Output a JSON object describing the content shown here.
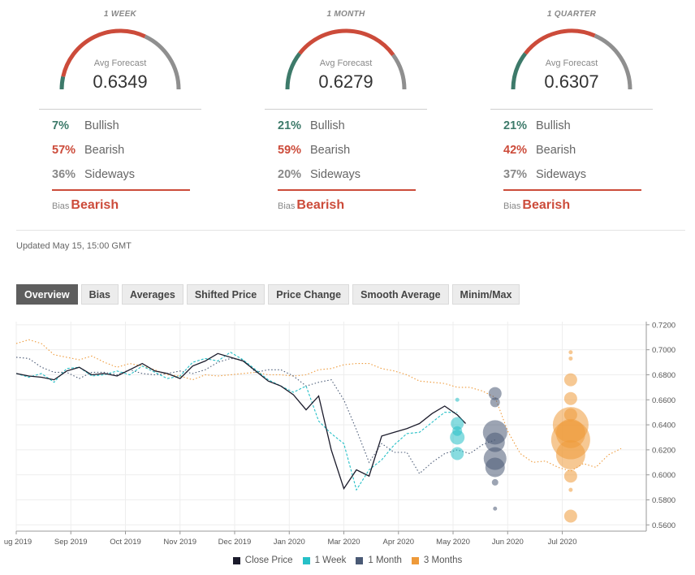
{
  "gauges": [
    {
      "period": "1 WEEK",
      "label": "Avg Forecast",
      "value": "0.6349",
      "bullish_pct": "7%",
      "bearish_pct": "57%",
      "sideways_pct": "36%",
      "bullish_label": "Bullish",
      "bearish_label": "Bearish",
      "sideways_label": "Sideways",
      "bias_key": "Bias",
      "bias_value": "Bearish",
      "split": [
        0.07,
        0.57,
        0.36
      ]
    },
    {
      "period": "1 MONTH",
      "label": "Avg Forecast",
      "value": "0.6279",
      "bullish_pct": "21%",
      "bearish_pct": "59%",
      "sideways_pct": "20%",
      "bullish_label": "Bullish",
      "bearish_label": "Bearish",
      "sideways_label": "Sideways",
      "bias_key": "Bias",
      "bias_value": "Bearish",
      "split": [
        0.21,
        0.59,
        0.2
      ]
    },
    {
      "period": "1 QUARTER",
      "label": "Avg Forecast",
      "value": "0.6307",
      "bullish_pct": "21%",
      "bearish_pct": "42%",
      "sideways_pct": "37%",
      "bullish_label": "Bullish",
      "bearish_label": "Bearish",
      "sideways_label": "Sideways",
      "bias_key": "Bias",
      "bias_value": "Bearish",
      "split": [
        0.21,
        0.42,
        0.37
      ]
    }
  ],
  "colors": {
    "bullish": "#3d7a6a",
    "bearish": "#cc4b3a",
    "sideways": "#8f8f8f",
    "close": "#1b1b2b",
    "week": "#26c0c7",
    "month": "#4a5a75",
    "quarter": "#ee9a3a"
  },
  "updated": "Updated May 15, 15:00 GMT",
  "tabs": [
    "Overview",
    "Bias",
    "Averages",
    "Shifted Price",
    "Price Change",
    "Smooth Average",
    "Minim/Max"
  ],
  "legend": {
    "close": "Close Price",
    "week": "1 Week",
    "month": "1 Month",
    "quarter": "3 Months"
  },
  "chart_data": {
    "type": "line",
    "x_labels": [
      "ug 2019",
      "Sep 2019",
      "Oct 2019",
      "Nov 2019",
      "Dec 2019",
      "Jan 2020",
      "Mar 2020",
      "Apr 2020",
      "May 2020",
      "Jun 2020",
      "Jul 2020"
    ],
    "y_ticks": [
      "0.7200",
      "0.7000",
      "0.6800",
      "0.6600",
      "0.6400",
      "0.6200",
      "0.6000",
      "0.5800",
      "0.5600"
    ],
    "ylim": [
      0.555,
      0.7225
    ],
    "series": [
      {
        "name": "Close Price",
        "style": "solid",
        "points": [
          [
            0,
            0.681
          ],
          [
            6,
            0.679
          ],
          [
            12,
            0.678
          ],
          [
            18,
            0.676
          ],
          [
            24,
            0.683
          ],
          [
            30,
            0.686
          ],
          [
            36,
            0.68
          ],
          [
            42,
            0.681
          ],
          [
            48,
            0.679
          ],
          [
            54,
            0.684
          ],
          [
            60,
            0.689
          ],
          [
            66,
            0.683
          ],
          [
            72,
            0.681
          ],
          [
            78,
            0.677
          ],
          [
            84,
            0.687
          ],
          [
            90,
            0.691
          ],
          [
            96,
            0.697
          ],
          [
            102,
            0.694
          ],
          [
            108,
            0.691
          ],
          [
            114,
            0.683
          ],
          [
            120,
            0.675
          ],
          [
            126,
            0.671
          ],
          [
            132,
            0.664
          ],
          [
            138,
            0.652
          ],
          [
            144,
            0.663
          ],
          [
            150,
            0.62
          ],
          [
            156,
            0.589
          ],
          [
            162,
            0.604
          ],
          [
            168,
            0.599
          ],
          [
            174,
            0.631
          ],
          [
            180,
            0.634
          ],
          [
            186,
            0.637
          ],
          [
            192,
            0.641
          ],
          [
            198,
            0.649
          ],
          [
            204,
            0.655
          ],
          [
            210,
            0.648
          ],
          [
            214,
            0.641
          ]
        ]
      },
      {
        "name": "1 Week",
        "style": "dash",
        "points": [
          [
            0,
            0.681
          ],
          [
            6,
            0.678
          ],
          [
            12,
            0.681
          ],
          [
            18,
            0.674
          ],
          [
            24,
            0.685
          ],
          [
            30,
            0.686
          ],
          [
            36,
            0.679
          ],
          [
            42,
            0.68
          ],
          [
            48,
            0.683
          ],
          [
            54,
            0.68
          ],
          [
            60,
            0.687
          ],
          [
            66,
            0.682
          ],
          [
            72,
            0.677
          ],
          [
            78,
            0.679
          ],
          [
            84,
            0.69
          ],
          [
            90,
            0.693
          ],
          [
            96,
            0.691
          ],
          [
            102,
            0.698
          ],
          [
            108,
            0.692
          ],
          [
            114,
            0.684
          ],
          [
            120,
            0.676
          ],
          [
            126,
            0.671
          ],
          [
            132,
            0.666
          ],
          [
            138,
            0.671
          ],
          [
            144,
            0.643
          ],
          [
            150,
            0.633
          ],
          [
            156,
            0.625
          ],
          [
            162,
            0.588
          ],
          [
            168,
            0.604
          ],
          [
            174,
            0.612
          ],
          [
            180,
            0.624
          ],
          [
            186,
            0.633
          ],
          [
            192,
            0.634
          ],
          [
            198,
            0.642
          ],
          [
            204,
            0.65
          ],
          [
            210,
            0.65
          ]
        ]
      },
      {
        "name": "1 Month",
        "style": "dot",
        "points": [
          [
            0,
            0.694
          ],
          [
            6,
            0.693
          ],
          [
            12,
            0.686
          ],
          [
            18,
            0.682
          ],
          [
            24,
            0.682
          ],
          [
            30,
            0.677
          ],
          [
            36,
            0.682
          ],
          [
            42,
            0.682
          ],
          [
            48,
            0.68
          ],
          [
            54,
            0.684
          ],
          [
            60,
            0.681
          ],
          [
            66,
            0.68
          ],
          [
            72,
            0.681
          ],
          [
            78,
            0.683
          ],
          [
            84,
            0.681
          ],
          [
            90,
            0.684
          ],
          [
            96,
            0.69
          ],
          [
            102,
            0.693
          ],
          [
            108,
            0.692
          ],
          [
            114,
            0.682
          ],
          [
            120,
            0.684
          ],
          [
            126,
            0.684
          ],
          [
            132,
            0.679
          ],
          [
            138,
            0.671
          ],
          [
            144,
            0.674
          ],
          [
            150,
            0.676
          ],
          [
            156,
            0.66
          ],
          [
            162,
            0.636
          ],
          [
            168,
            0.61
          ],
          [
            174,
            0.625
          ],
          [
            180,
            0.618
          ],
          [
            186,
            0.618
          ],
          [
            192,
            0.601
          ],
          [
            198,
            0.61
          ],
          [
            204,
            0.617
          ],
          [
            210,
            0.62
          ],
          [
            216,
            0.617
          ],
          [
            222,
            0.624
          ],
          [
            228,
            0.628
          ]
        ]
      },
      {
        "name": "3 Months",
        "style": "dot",
        "points": [
          [
            0,
            0.705
          ],
          [
            6,
            0.708
          ],
          [
            12,
            0.705
          ],
          [
            18,
            0.696
          ],
          [
            24,
            0.694
          ],
          [
            30,
            0.692
          ],
          [
            36,
            0.695
          ],
          [
            42,
            0.69
          ],
          [
            48,
            0.686
          ],
          [
            54,
            0.689
          ],
          [
            60,
            0.687
          ],
          [
            66,
            0.684
          ],
          [
            72,
            0.68
          ],
          [
            78,
            0.679
          ],
          [
            84,
            0.676
          ],
          [
            90,
            0.68
          ],
          [
            96,
            0.679
          ],
          [
            102,
            0.68
          ],
          [
            108,
            0.681
          ],
          [
            114,
            0.682
          ],
          [
            120,
            0.68
          ],
          [
            126,
            0.68
          ],
          [
            132,
            0.679
          ],
          [
            138,
            0.68
          ],
          [
            144,
            0.684
          ],
          [
            150,
            0.685
          ],
          [
            156,
            0.688
          ],
          [
            162,
            0.689
          ],
          [
            168,
            0.689
          ],
          [
            174,
            0.685
          ],
          [
            180,
            0.683
          ],
          [
            186,
            0.68
          ],
          [
            192,
            0.675
          ],
          [
            198,
            0.674
          ],
          [
            204,
            0.673
          ],
          [
            210,
            0.67
          ],
          [
            216,
            0.67
          ],
          [
            222,
            0.667
          ],
          [
            228,
            0.662
          ],
          [
            234,
            0.635
          ],
          [
            240,
            0.617
          ],
          [
            246,
            0.61
          ],
          [
            252,
            0.611
          ],
          [
            258,
            0.606
          ],
          [
            264,
            0.603
          ],
          [
            270,
            0.609
          ],
          [
            276,
            0.606
          ],
          [
            282,
            0.616
          ],
          [
            288,
            0.621
          ]
        ]
      }
    ],
    "bubbles": [
      {
        "series": "1 Week",
        "x": 210,
        "values": [
          0.66,
          0.641,
          0.635,
          0.63,
          0.617
        ],
        "sizes": [
          2.5,
          8,
          6,
          9,
          8
        ]
      },
      {
        "series": "1 Month",
        "x": 228,
        "values": [
          0.665,
          0.658,
          0.634,
          0.626,
          0.613,
          0.606,
          0.594,
          0.573
        ],
        "sizes": [
          8,
          6,
          15,
          12,
          14,
          12,
          4,
          2.5
        ]
      },
      {
        "series": "3 Months",
        "x": 264,
        "values": [
          0.698,
          0.693,
          0.676,
          0.661,
          0.648,
          0.64,
          0.633,
          0.628,
          0.616,
          0.599,
          0.588,
          0.567
        ],
        "sizes": [
          2.5,
          2.5,
          8,
          8,
          8,
          22,
          18,
          24,
          18,
          8,
          2.5,
          8
        ]
      }
    ]
  }
}
